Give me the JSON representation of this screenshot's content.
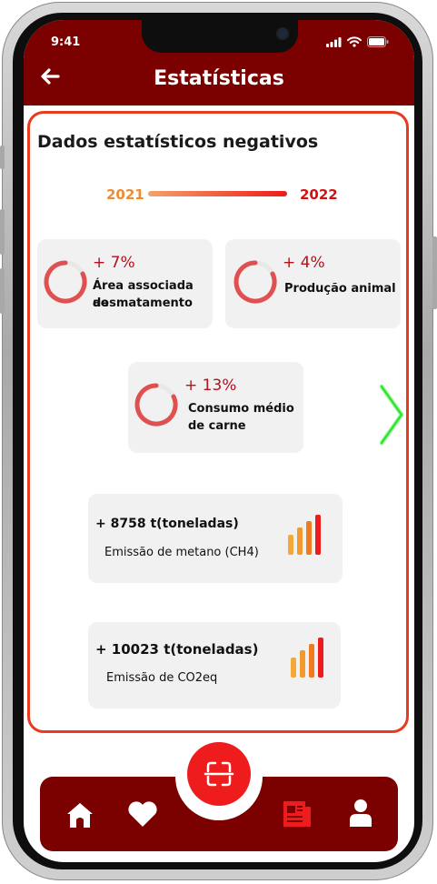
{
  "status_bar": {
    "time": "9:41"
  },
  "header": {
    "title": "Estatísticas",
    "back_icon": "arrow-left-icon"
  },
  "section": {
    "title": "Dados estatísticos negativos"
  },
  "years": {
    "from": "2021",
    "to": "2022"
  },
  "stat_cards": [
    {
      "pct": "+ 7%",
      "label_line1": "Área associada ao",
      "label_line2": "desmatamento"
    },
    {
      "pct": "+ 4%",
      "label_line1": "Produção animal",
      "label_line2": ""
    },
    {
      "pct": "+ 13%",
      "label_line1": "Consumo médio",
      "label_line2": "de carne"
    }
  ],
  "emissions": [
    {
      "value": "+ 8758 t(toneladas)",
      "label": "Emissão de metano (CH4)"
    },
    {
      "value": "+ 10023 t(toneladas)",
      "label": "Emissão de CO2eq"
    }
  ],
  "nav": {
    "items": [
      "home-icon",
      "heart-icon",
      "news-icon",
      "user-icon"
    ],
    "active": "news-icon",
    "center": "scan-icon"
  },
  "colors": {
    "brand": "#7b0000",
    "accent": "#ee1c1c",
    "pct": "#b3111b",
    "year_from": "#f08a30",
    "next_arrow": "#2ee52e"
  }
}
